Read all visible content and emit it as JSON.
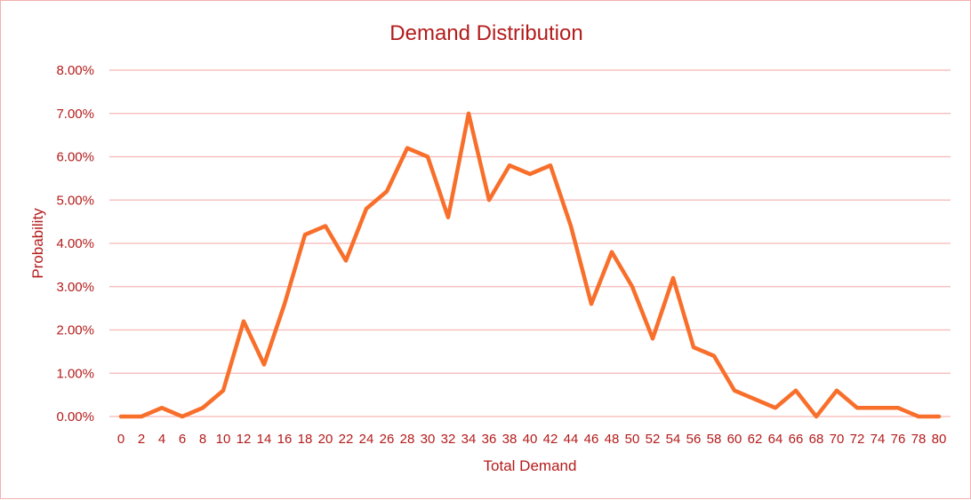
{
  "chart_data": {
    "type": "line",
    "title": "Demand Distribution",
    "xlabel": "Total Demand",
    "ylabel": "Probability",
    "ylim": [
      0,
      0.08
    ],
    "y_ticks": [
      "0.00%",
      "1.00%",
      "2.00%",
      "3.00%",
      "4.00%",
      "5.00%",
      "6.00%",
      "7.00%",
      "8.00%"
    ],
    "grid": "horizontal",
    "legend": "none",
    "x": [
      "0",
      "2",
      "4",
      "6",
      "8",
      "10",
      "12",
      "14",
      "16",
      "18",
      "20",
      "22",
      "24",
      "26",
      "28",
      "30",
      "32",
      "34",
      "36",
      "38",
      "40",
      "42",
      "44",
      "46",
      "48",
      "50",
      "52",
      "54",
      "56",
      "58",
      "60",
      "62",
      "64",
      "66",
      "68",
      "70",
      "72",
      "74",
      "76",
      "78",
      "80"
    ],
    "series": [
      {
        "values": [
          0.0,
          0.0,
          0.002,
          0.0,
          0.002,
          0.006,
          0.022,
          0.012,
          0.026,
          0.042,
          0.044,
          0.036,
          0.048,
          0.052,
          0.062,
          0.06,
          0.046,
          0.07,
          0.05,
          0.058,
          0.056,
          0.058,
          0.044,
          0.026,
          0.038,
          0.03,
          0.018,
          0.032,
          0.016,
          0.014,
          0.006,
          0.004,
          0.002,
          0.006,
          0.0,
          0.006,
          0.002,
          0.002,
          0.002,
          0.0,
          0.0
        ]
      }
    ],
    "colors": {
      "line": "#f86f2b",
      "text": "#b41b1b",
      "grid": "#f6b7b7",
      "border": "#f4b0b0"
    }
  }
}
